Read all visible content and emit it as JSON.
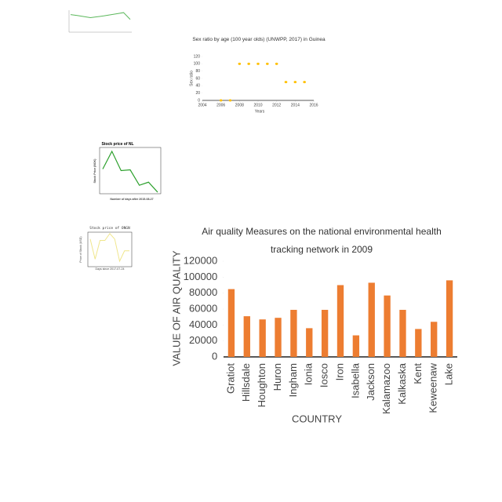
{
  "chart_data": [
    {
      "type": "line",
      "categories": [
        null,
        null,
        null,
        null,
        null,
        null,
        null,
        null,
        null,
        null
      ],
      "values": [
        8,
        7.6,
        7.1,
        6.6,
        7,
        7.4,
        7.9,
        8.4,
        8.9,
        5.8
      ],
      "color": "#5cb85c",
      "ylim": [
        0,
        10
      ]
    },
    {
      "type": "scatter",
      "title": "Sex ratio by age (100 year olds) (UNWPP, 2017) in Guinea",
      "x_label": "Years",
      "y_label": "Sex ratio",
      "x": [
        2006,
        2007,
        2008,
        2009,
        2010,
        2011,
        2012,
        2013,
        2014,
        2015
      ],
      "values": [
        0,
        0,
        100,
        100,
        100,
        100,
        100,
        50,
        50,
        50
      ],
      "color": "#ffc000",
      "xlim": [
        2004,
        2016
      ],
      "xticks": [
        2004,
        2006,
        2008,
        2010,
        2012,
        2014,
        2016
      ],
      "ylim": [
        0,
        120
      ],
      "yticks": [
        0,
        20,
        40,
        60,
        80,
        100,
        120
      ]
    },
    {
      "type": "line",
      "title": "Stock price of NL",
      "x_label": "Number of days after 2015-08-27",
      "y_label": "Stock Price (NOK)",
      "categories": [
        null,
        null,
        null,
        null,
        null,
        null,
        null
      ],
      "values": [
        32,
        55,
        30,
        31,
        11,
        15,
        2
      ],
      "color": "#2ca02c",
      "ylim": [
        0,
        60
      ]
    },
    {
      "type": "line",
      "title": "Stock price of ONGN",
      "x_label": "Days since 2017-07-24",
      "y_label": "Price of Stock (USD)",
      "categories": [
        null,
        null,
        null,
        null,
        null,
        null,
        null,
        null,
        null
      ],
      "values": [
        40,
        11,
        38,
        38,
        48,
        40,
        8,
        23,
        23
      ],
      "color": "#f0e68c",
      "ylim": [
        0,
        50
      ]
    },
    {
      "type": "bar",
      "title": "Air quality Measures on the national environmental health tracking network in 2009",
      "x_label": "COUNTRY",
      "y_label": "VALUE OF  AIR QUALITY",
      "categories": [
        "Gratiot",
        "Hillsdale",
        "Houghton",
        "Huron",
        "Ingham",
        "Ionia",
        "Iosco",
        "Iron",
        "Isabella",
        "Jackson",
        "Kalamazoo",
        "Kalkaska",
        "Kent",
        "Keweenaw",
        "Lake"
      ],
      "values": [
        85000,
        51000,
        47000,
        49000,
        59000,
        36000,
        59000,
        90000,
        27000,
        93000,
        77000,
        59000,
        35000,
        44000,
        96000
      ],
      "color": "#ed7d31",
      "ylim": [
        0,
        120000
      ],
      "yticks": [
        0,
        20000,
        40000,
        60000,
        80000,
        100000,
        120000
      ]
    }
  ]
}
